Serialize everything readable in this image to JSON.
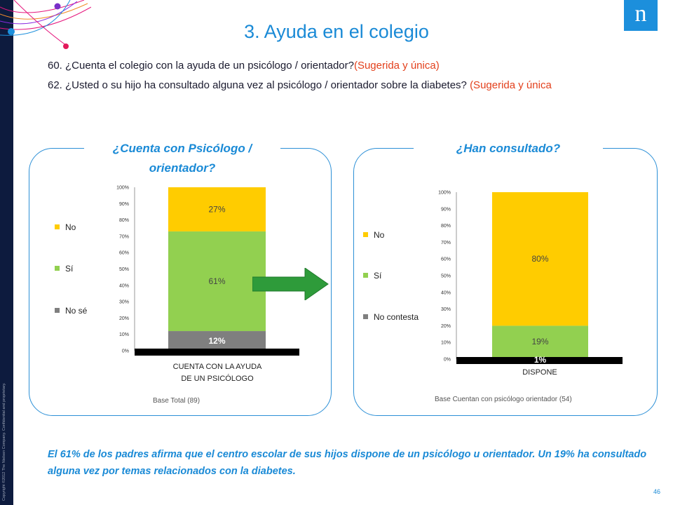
{
  "header": {
    "title": "3. Ayuda en el colegio",
    "q1_text": "60. ¿Cuenta el colegio con la ayuda de un psicólogo / orientador?",
    "q1_tag": "(Sugerida y única)",
    "q2_text": "62. ¿Usted o su hijo ha consultado alguna vez al psicólogo / orientador sobre la diabetes? ",
    "q2_tag": "(Sugerida y única",
    "logo": "n"
  },
  "colors": {
    "accent": "#1a8ad6",
    "tag": "#e3401c",
    "no": "#ffcc00",
    "si": "#92d050",
    "nose": "#7f7f7f",
    "arrow": "#2e9b3a"
  },
  "panels": [
    {
      "title_line1": "¿Cuenta con Psicólogo /",
      "title_line2": "orientador?",
      "legend": [
        "No",
        "Sí",
        "No sé"
      ],
      "category_line1": "CUENTA CON LA AYUDA",
      "category_line2": "DE UN PSICÓLOGO",
      "base": "Base Total (89)"
    },
    {
      "title_line1": "¿Han consultado?",
      "legend": [
        "No",
        "Sí",
        "No contesta"
      ],
      "category_line1": "DISPONE",
      "base": "Base  Cuentan con psicólogo orientador (54)"
    }
  ],
  "chart_data": [
    {
      "type": "bar",
      "stacked": true,
      "categories": [
        "CUENTA CON LA AYUDA DE UN PSICÓLOGO"
      ],
      "series": [
        {
          "name": "No sé",
          "values": [
            12
          ],
          "label": "12%"
        },
        {
          "name": "Sí",
          "values": [
            61
          ],
          "label": "61%"
        },
        {
          "name": "No",
          "values": [
            27
          ],
          "label": "27%"
        }
      ],
      "ylim": [
        0,
        100
      ],
      "yticks": [
        "0%",
        "10%",
        "20%",
        "30%",
        "40%",
        "50%",
        "60%",
        "70%",
        "80%",
        "90%",
        "100%"
      ],
      "legend_position": "left"
    },
    {
      "type": "bar",
      "stacked": true,
      "categories": [
        "DISPONE"
      ],
      "series": [
        {
          "name": "No contesta",
          "values": [
            1
          ],
          "label": "1%"
        },
        {
          "name": "Sí",
          "values": [
            19
          ],
          "label": "19%"
        },
        {
          "name": "No",
          "values": [
            80
          ],
          "label": "80%"
        }
      ],
      "ylim": [
        0,
        100
      ],
      "yticks": [
        "0%",
        "10%",
        "20%",
        "30%",
        "40%",
        "50%",
        "60%",
        "70%",
        "80%",
        "90%",
        "100%"
      ],
      "legend_position": "left"
    }
  ],
  "footer": {
    "conclusion": "El 61% de los padres afirma que el centro escolar de sus hijos dispone de un psicólogo u orientador.  Un 19% ha consultado alguna vez por temas relacionados con la diabetes.",
    "page_number": "46",
    "copyright": "Copyright ©2012 The Nielsen Company. Confidential and proprietary."
  }
}
